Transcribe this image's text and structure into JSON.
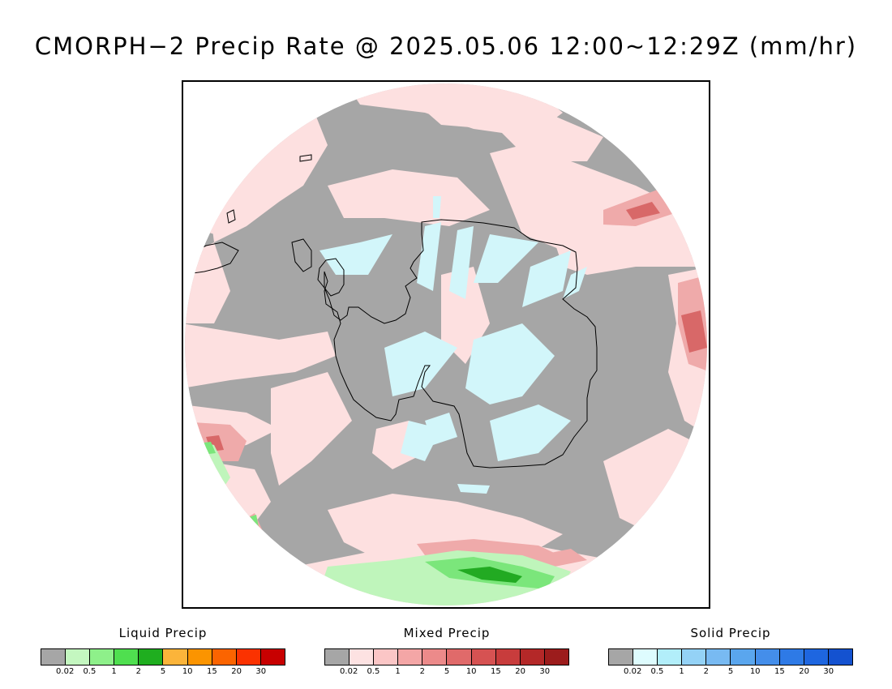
{
  "title": "CMORPH−2 Precip Rate @ 2025.05.06 12:00~12:29Z (mm/hr)",
  "map": {
    "projection": "south-polar-stereographic",
    "region": "Antarctica / Southern Ocean",
    "colors": {
      "background_no_precip": "#a6a6a6",
      "light_mixed": "#fde0e0",
      "moderate_mixed": "#efaaaa",
      "heavy_mixed": "#d86868",
      "light_solid": "#d2f6fa",
      "light_liquid": "#bff5bb",
      "moderate_liquid": "#7be67b",
      "heavy_liquid": "#22aa22",
      "coastline": "#000000"
    }
  },
  "legends": [
    {
      "title": "Liquid Precip",
      "colors": [
        "#a6a6a6",
        "#c4f7c0",
        "#8ef08a",
        "#4fdf4f",
        "#1fae1f",
        "#fbb43a",
        "#fb9400",
        "#fb6400",
        "#fb3200",
        "#c80000"
      ],
      "ticks": [
        "0.02",
        "0.5",
        "1",
        "2",
        "5",
        "10",
        "15",
        "20",
        "30"
      ]
    },
    {
      "title": "Mixed Precip",
      "colors": [
        "#a6a6a6",
        "#fde2e2",
        "#fbc6c6",
        "#f4a6a6",
        "#ec8a8a",
        "#e06a6a",
        "#d65252",
        "#c83c3c",
        "#b42828",
        "#9c1c1c"
      ],
      "ticks": [
        "0.02",
        "0.5",
        "1",
        "2",
        "5",
        "10",
        "15",
        "20",
        "30"
      ]
    },
    {
      "title": "Solid Precip",
      "colors": [
        "#a6a6a6",
        "#defcfe",
        "#b2eefa",
        "#94d2f6",
        "#78baf2",
        "#5aa6ee",
        "#448eea",
        "#2e7ae6",
        "#1e66e0",
        "#1452d0"
      ],
      "ticks": [
        "0.02",
        "0.5",
        "1",
        "2",
        "5",
        "10",
        "15",
        "20",
        "30"
      ]
    }
  ]
}
